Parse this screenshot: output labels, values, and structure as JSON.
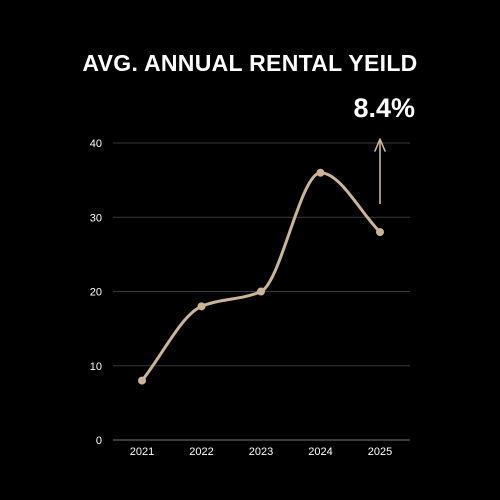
{
  "colors": {
    "background": "#000000",
    "line": "#cbb595",
    "grid": "#3a3a3a",
    "text": "#ffffff"
  },
  "chart_data": {
    "type": "line",
    "title": "AVG. ANNUAL RENTAL YEILD",
    "annotation": "8.4%",
    "x": [
      "2021",
      "2022",
      "2023",
      "2024",
      "2025"
    ],
    "series": [
      {
        "values": [
          8,
          18,
          20,
          36,
          28
        ]
      }
    ],
    "ylim": [
      0,
      40
    ],
    "yticks": [
      0,
      10,
      20,
      30,
      40
    ],
    "xlabel": "",
    "ylabel": "",
    "grid": true,
    "smooth": true,
    "annotation_arrow": "up"
  }
}
